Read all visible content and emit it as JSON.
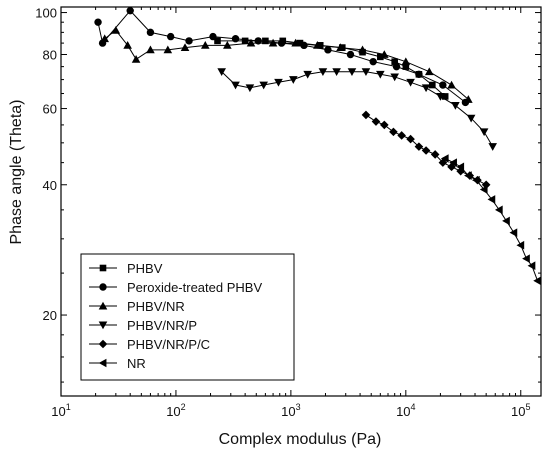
{
  "chart_data": {
    "type": "line",
    "xlabel": "Complex modulus (Pa)",
    "ylabel": "Phase angle (Theta)",
    "xscale": "log",
    "yscale": "log",
    "xlim": [
      10,
      150000
    ],
    "ylim": [
      13,
      103
    ],
    "x_ticks": [
      {
        "value": 10,
        "base": "10",
        "exp": "1"
      },
      {
        "value": 100,
        "base": "10",
        "exp": "2"
      },
      {
        "value": 1000,
        "base": "10",
        "exp": "3"
      },
      {
        "value": 10000,
        "base": "10",
        "exp": "4"
      },
      {
        "value": 100000,
        "base": "10",
        "exp": "5"
      }
    ],
    "y_ticks": [
      {
        "value": 20,
        "label": "20"
      },
      {
        "value": 40,
        "label": "40"
      },
      {
        "value": 60,
        "label": "60"
      },
      {
        "value": 80,
        "label": "80"
      },
      {
        "value": 100,
        "label": "100"
      }
    ],
    "grid": false,
    "legend_position": "bottom-left",
    "series": [
      {
        "name": "PHBV",
        "marker": "square",
        "x": [
          230,
          400,
          600,
          850,
          1200,
          1800,
          2800,
          4200,
          6000,
          8000,
          10000,
          13000,
          17000,
          22000
        ],
        "y": [
          86,
          86,
          86,
          86,
          85,
          84,
          83,
          81,
          79,
          77,
          75,
          72,
          68,
          64
        ]
      },
      {
        "name": "Peroxide-treated PHBV",
        "marker": "circle",
        "x": [
          21,
          23,
          40,
          60,
          90,
          130,
          210,
          330,
          520,
          830,
          1300,
          2100,
          3300,
          5200,
          8300,
          13000,
          21000,
          33000
        ],
        "y": [
          95,
          85,
          101,
          90,
          88,
          86,
          88,
          87,
          86,
          85,
          84,
          82,
          80,
          77,
          75,
          72,
          68,
          62
        ]
      },
      {
        "name": "PHBV/NR",
        "marker": "triangle-up",
        "x": [
          24,
          30,
          38,
          45,
          60,
          85,
          120,
          180,
          280,
          450,
          700,
          1100,
          1700,
          2700,
          4200,
          6500,
          10000,
          16000,
          25000,
          35000
        ],
        "y": [
          87,
          91,
          84,
          78,
          82,
          82,
          83,
          84,
          84,
          85,
          85,
          85,
          84,
          83,
          82,
          80,
          77,
          73,
          68,
          63
        ]
      },
      {
        "name": "PHBV/NR/P",
        "marker": "triangle-down",
        "x": [
          250,
          330,
          440,
          580,
          780,
          1050,
          1400,
          1900,
          2500,
          3400,
          4500,
          6000,
          8000,
          11000,
          15000,
          20000,
          27000,
          37000,
          48000,
          57000
        ],
        "y": [
          73,
          68,
          67,
          68,
          69,
          70,
          72,
          73,
          73,
          73,
          73,
          72,
          71,
          69,
          67,
          64,
          61,
          57,
          53,
          49
        ]
      },
      {
        "name": "PHBV/NR/P/C",
        "marker": "diamond",
        "x": [
          4500,
          5500,
          6500,
          7800,
          9200,
          11000,
          13000,
          15000,
          18000,
          21000,
          25000,
          30000,
          36000,
          42000,
          50000
        ],
        "y": [
          58,
          56,
          55,
          53,
          52,
          51,
          49,
          48,
          47,
          45,
          44,
          43,
          42,
          41,
          40
        ]
      },
      {
        "name": "NR",
        "marker": "triangle-left",
        "x": [
          22000,
          26000,
          30000,
          35000,
          41000,
          48000,
          56000,
          65000,
          75000,
          87000,
          100000,
          112000,
          125000,
          140000
        ],
        "y": [
          46,
          45,
          44,
          42,
          41,
          39,
          37,
          35,
          33,
          31,
          29,
          27,
          26,
          24
        ]
      }
    ]
  }
}
